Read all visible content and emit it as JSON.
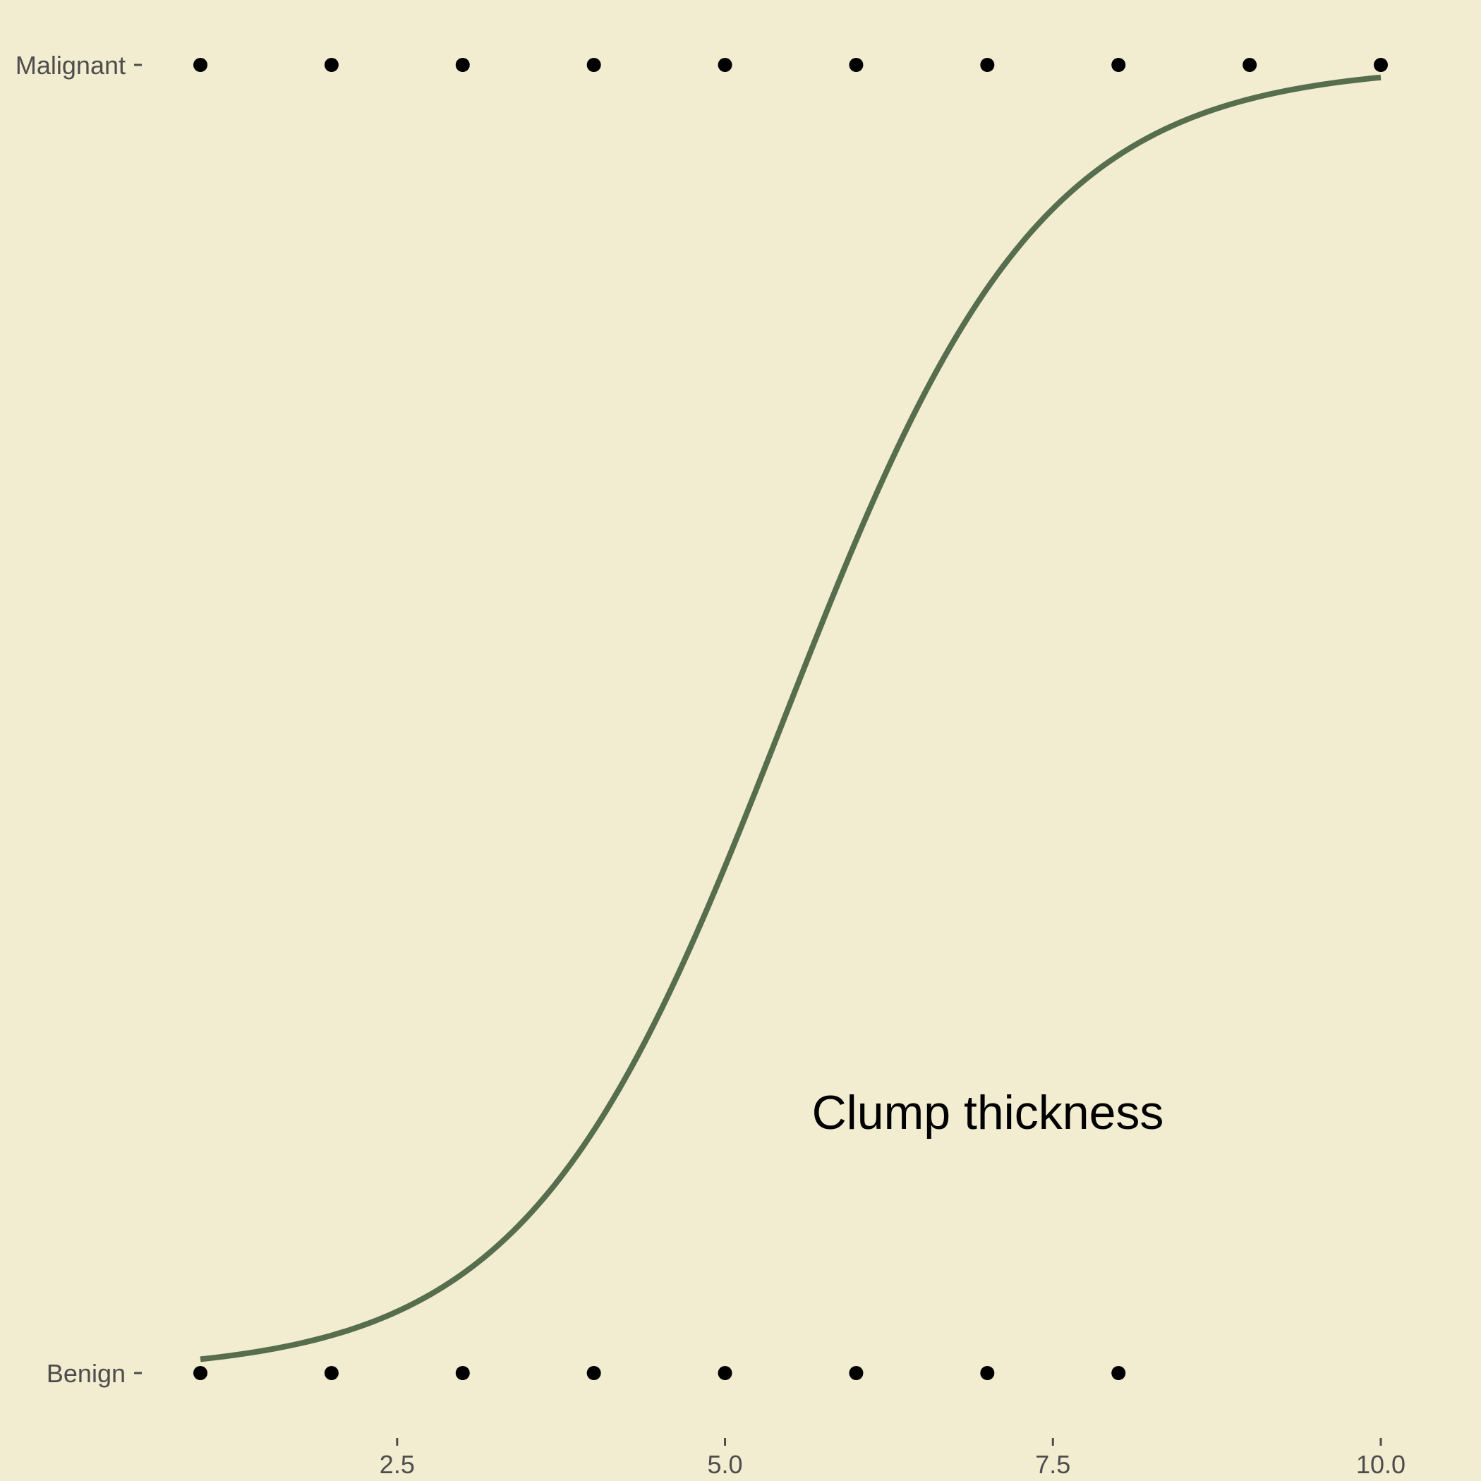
{
  "chart_data": {
    "type": "scatter",
    "title": "",
    "xlabel": "",
    "ylabel": "",
    "xlim": [
      0.6,
      10.55
    ],
    "x_ticks": [
      2.5,
      5.0,
      7.5,
      10.0
    ],
    "x_tick_labels": [
      "2.5",
      "5.0",
      "7.5",
      "10.0"
    ],
    "y_categories": [
      "Benign",
      "Malignant"
    ],
    "grid": false,
    "legend": "none",
    "annotation": "Clump thickness",
    "points": {
      "Benign": [
        1,
        2,
        3,
        4,
        5,
        6,
        7,
        8
      ],
      "Malignant": [
        1,
        2,
        3,
        4,
        5,
        6,
        7,
        8,
        9,
        10
      ]
    },
    "fit": {
      "name": "",
      "model": "logistic",
      "x_range": [
        1,
        10
      ],
      "midpoint": 5.45,
      "slope": 1.02
    },
    "colors": {
      "panel": "#f2ecd0",
      "curve": "#566e4d",
      "points": "#000000",
      "text": "#4d4d4d"
    }
  }
}
